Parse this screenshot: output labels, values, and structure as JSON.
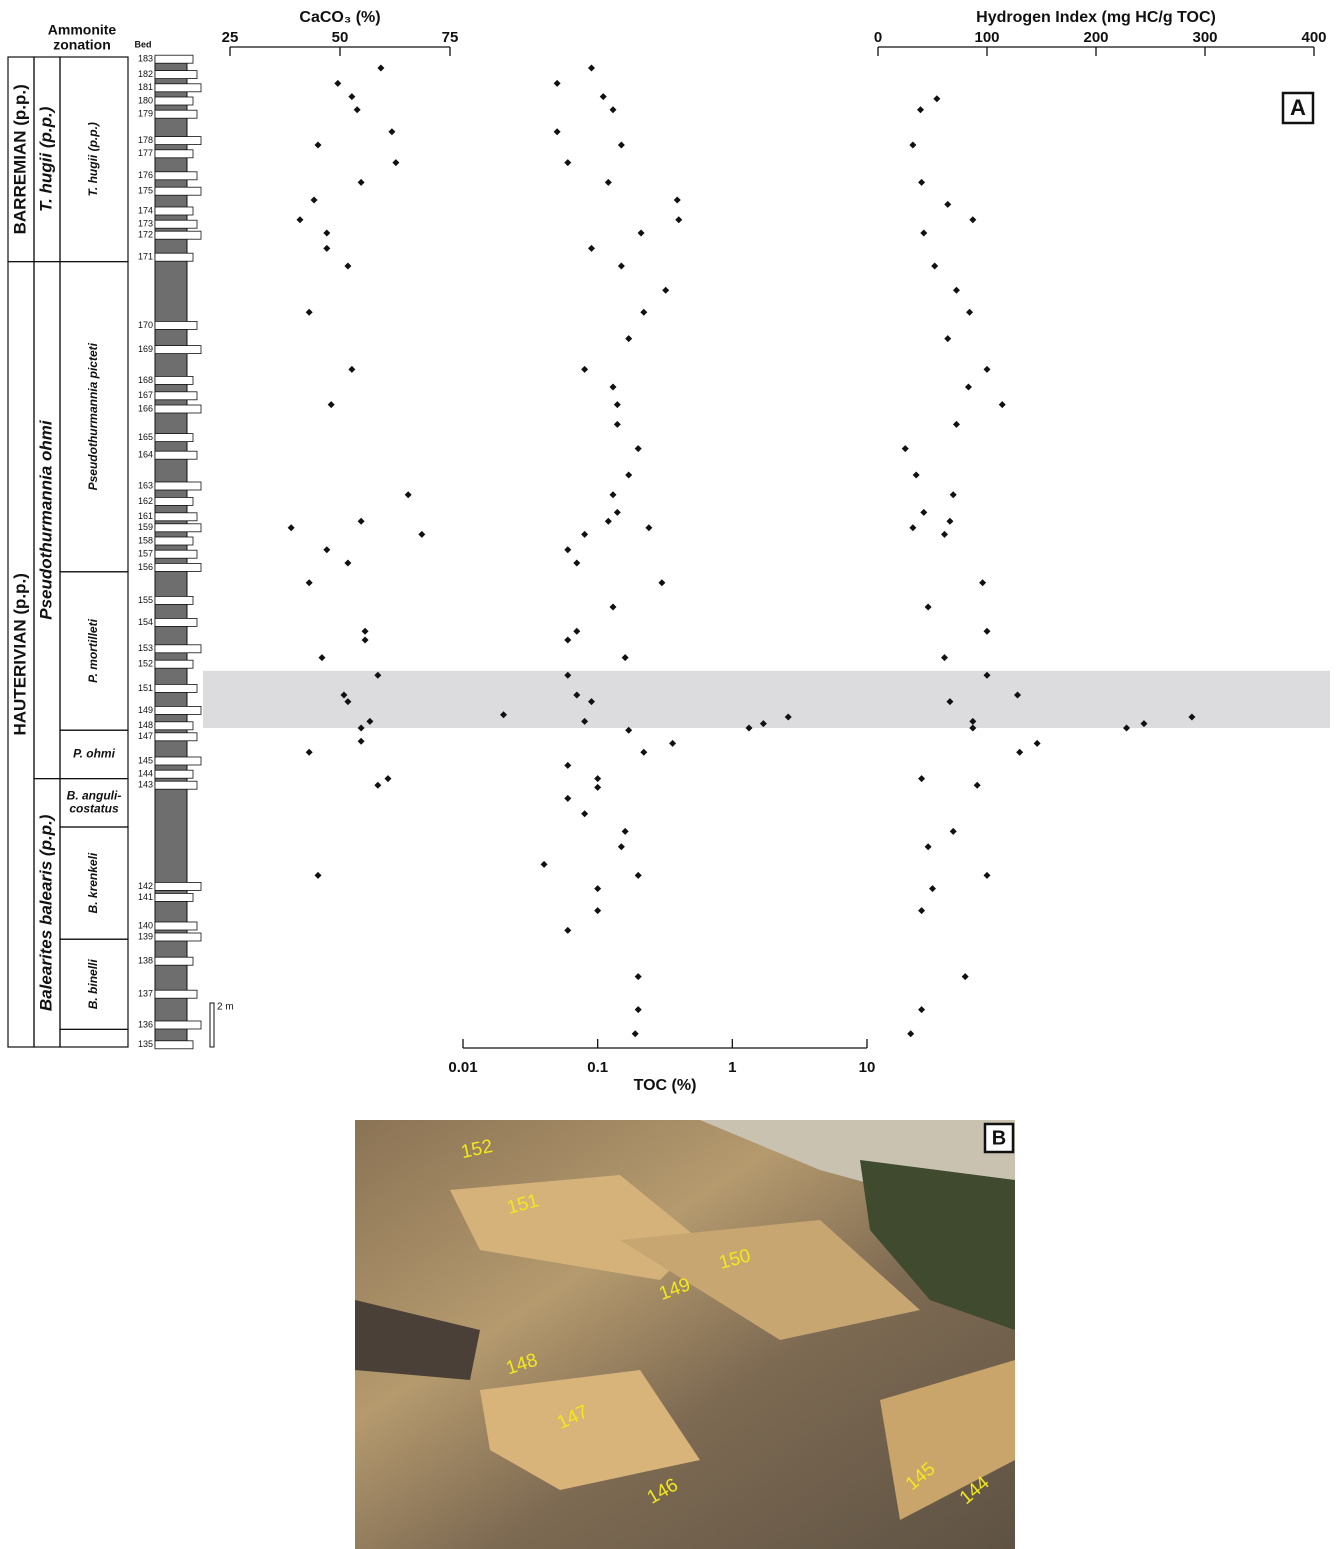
{
  "section": {
    "header_lines": [
      "Ammonite",
      "zonation"
    ],
    "bed_header": "Bed",
    "ylim": [
      0,
      45
    ],
    "stages": [
      {
        "label": "BARREMIAN (p.p.)",
        "from": 35.7,
        "to": 45
      },
      {
        "label": "HAUTERIVIAN (p.p.)",
        "from": 0,
        "to": 35.7
      }
    ],
    "zones": [
      {
        "label": "T. hugii (p.p.)",
        "from": 35.7,
        "to": 45
      },
      {
        "label": "Pseudothurmannia ohmi",
        "from": 12.2,
        "to": 35.7
      },
      {
        "label": "Balearites balearis (p.p.)",
        "from": 0,
        "to": 12.2
      }
    ],
    "subzones": [
      {
        "lines": [
          "T. hugii (p.p.)"
        ],
        "from": 35.7,
        "to": 45,
        "orient": "vertical"
      },
      {
        "lines": [
          "Pseudothurmannia picteti"
        ],
        "from": 21.6,
        "to": 35.7,
        "orient": "vertical"
      },
      {
        "lines": [
          "P. mortilleti"
        ],
        "from": 14.4,
        "to": 21.6,
        "orient": "vertical"
      },
      {
        "lines": [
          "P. ohmi"
        ],
        "from": 12.2,
        "to": 14.4,
        "orient": "horizontal"
      },
      {
        "lines": [
          "B. anguli-",
          "costatus"
        ],
        "from": 10.0,
        "to": 12.2,
        "orient": "horizontal"
      },
      {
        "lines": [
          "B. krenkeli"
        ],
        "from": 4.9,
        "to": 10.0,
        "orient": "vertical"
      },
      {
        "lines": [
          "B. binelli"
        ],
        "from": 0.8,
        "to": 4.9,
        "orient": "vertical"
      }
    ],
    "beds": [
      {
        "label": "183",
        "height": 44.9
      },
      {
        "label": "182",
        "height": 44.2
      },
      {
        "label": "181",
        "height": 43.6
      },
      {
        "label": "180",
        "height": 43.0
      },
      {
        "label": "179",
        "height": 42.4
      },
      {
        "label": "178",
        "height": 41.2
      },
      {
        "label": "177",
        "height": 40.6
      },
      {
        "label": "176",
        "height": 39.6
      },
      {
        "label": "175",
        "height": 38.9
      },
      {
        "label": "174",
        "height": 38.0
      },
      {
        "label": "173",
        "height": 37.4
      },
      {
        "label": "172",
        "height": 36.9
      },
      {
        "label": "171",
        "height": 35.9
      },
      {
        "label": "170",
        "height": 32.8
      },
      {
        "label": "169",
        "height": 31.7
      },
      {
        "label": "168",
        "height": 30.3
      },
      {
        "label": "167",
        "height": 29.6
      },
      {
        "label": "166",
        "height": 29.0
      },
      {
        "label": "165",
        "height": 27.7
      },
      {
        "label": "164",
        "height": 26.9
      },
      {
        "label": "163",
        "height": 25.5
      },
      {
        "label": "162",
        "height": 24.8
      },
      {
        "label": "161",
        "height": 24.1
      },
      {
        "label": "159",
        "height": 23.6
      },
      {
        "label": "158",
        "height": 23.0
      },
      {
        "label": "157",
        "height": 22.4
      },
      {
        "label": "156",
        "height": 21.8
      },
      {
        "label": "155",
        "height": 20.3
      },
      {
        "label": "154",
        "height": 19.3
      },
      {
        "label": "153",
        "height": 18.1
      },
      {
        "label": "152",
        "height": 17.4
      },
      {
        "label": "151",
        "height": 16.3
      },
      {
        "label": "149",
        "height": 15.3
      },
      {
        "label": "148",
        "height": 14.6
      },
      {
        "label": "147",
        "height": 14.1
      },
      {
        "label": "145",
        "height": 13.0
      },
      {
        "label": "144",
        "height": 12.4
      },
      {
        "label": "143",
        "height": 11.9
      },
      {
        "label": "142",
        "height": 7.3
      },
      {
        "label": "141",
        "height": 6.8
      },
      {
        "label": "140",
        "height": 5.5
      },
      {
        "label": "139",
        "height": 5.0
      },
      {
        "label": "138",
        "height": 3.9
      },
      {
        "label": "137",
        "height": 2.4
      },
      {
        "label": "136",
        "height": 1.0
      },
      {
        "label": "135",
        "height": 0.1
      }
    ],
    "scale": {
      "label": "2 m",
      "length": 2
    },
    "highlight": [
      14.5,
      17.1
    ],
    "panel_label": "A"
  },
  "chart_data": [
    {
      "type": "scatter",
      "title": "CaCO₃ (%)",
      "axis_position": "top",
      "log": false,
      "color": "#111111",
      "xlim": [
        25,
        75
      ],
      "xticks": [
        25,
        50,
        75
      ],
      "values": [
        59.3,
        49.5,
        52.7,
        53.9,
        61.8,
        45.0,
        62.7,
        54.8,
        44.1,
        40.9,
        47.0,
        47.0,
        51.8,
        43.0,
        52.7,
        48.0,
        65.5,
        54.8,
        38.9,
        68.6,
        47.0,
        51.8,
        43.0,
        55.7,
        55.7,
        45.9,
        58.6,
        50.9,
        51.8,
        56.8,
        54.8,
        54.8,
        43.0,
        60.9,
        58.6,
        45.0
      ],
      "heights": [
        44.5,
        43.8,
        43.2,
        42.6,
        41.6,
        41.0,
        40.2,
        39.3,
        38.5,
        37.6,
        37.0,
        36.3,
        35.5,
        33.4,
        30.8,
        29.2,
        25.1,
        23.9,
        23.6,
        23.3,
        22.6,
        22.0,
        21.1,
        18.9,
        18.5,
        17.7,
        16.9,
        16.0,
        15.7,
        14.8,
        14.5,
        13.9,
        13.4,
        12.2,
        11.9,
        7.8
      ]
    },
    {
      "type": "scatter",
      "title": "TOC (%)",
      "axis_position": "bottom",
      "log": true,
      "color": "#111111",
      "xlim": [
        0.01,
        10
      ],
      "xticks": [
        0.01,
        0.1,
        1,
        10
      ],
      "values": [
        0.09,
        0.05,
        0.11,
        0.13,
        0.05,
        0.15,
        0.06,
        0.12,
        0.39,
        0.4,
        0.21,
        0.09,
        0.15,
        0.32,
        0.22,
        0.17,
        0.08,
        0.13,
        0.14,
        0.14,
        0.2,
        0.17,
        0.13,
        0.14,
        0.12,
        0.24,
        0.08,
        0.06,
        0.07,
        0.3,
        0.13,
        0.07,
        0.06,
        0.16,
        0.06,
        0.07,
        0.09,
        0.02,
        0.08,
        0.17,
        2.6,
        1.7,
        1.33,
        0.36,
        0.22,
        0.06,
        0.1,
        0.1,
        0.06,
        0.08,
        0.16,
        0.15,
        0.04,
        0.2,
        0.1,
        0.1,
        0.06,
        0.2,
        0.2,
        0.19
      ],
      "heights": [
        44.5,
        43.8,
        43.2,
        42.6,
        41.6,
        41.0,
        40.2,
        39.3,
        38.5,
        37.6,
        37.0,
        36.3,
        35.5,
        34.4,
        33.4,
        32.2,
        30.8,
        30.0,
        29.2,
        28.3,
        27.2,
        26.0,
        25.1,
        24.3,
        23.9,
        23.6,
        23.3,
        22.6,
        22.0,
        21.1,
        20.0,
        18.9,
        18.5,
        17.7,
        16.9,
        16.0,
        15.7,
        15.1,
        14.8,
        14.4,
        15.0,
        14.7,
        14.5,
        13.8,
        13.4,
        12.8,
        12.2,
        11.8,
        11.3,
        10.6,
        9.8,
        9.1,
        8.3,
        7.8,
        7.2,
        6.2,
        5.3,
        3.2,
        1.7,
        0.6
      ]
    },
    {
      "type": "scatter",
      "title": "Hydrogen Index (mg HC/g TOC)",
      "axis_position": "top",
      "log": false,
      "color": "#111111",
      "xlim": [
        0,
        400
      ],
      "xticks": [
        0,
        100,
        200,
        300,
        400
      ],
      "values": [
        54,
        39,
        32,
        40,
        64,
        87,
        42,
        52,
        72,
        84,
        64,
        100,
        83,
        114,
        72,
        25,
        35,
        69,
        42,
        66,
        32,
        61,
        96,
        46,
        100,
        61,
        100,
        128,
        66,
        288,
        244,
        87,
        87,
        228,
        146,
        130,
        40,
        91,
        69,
        46,
        100,
        50,
        40,
        80,
        40,
        30
      ],
      "heights": [
        43.1,
        42.6,
        41.0,
        39.3,
        38.3,
        37.6,
        37.0,
        35.5,
        34.4,
        33.4,
        32.2,
        30.8,
        30.0,
        29.2,
        28.3,
        27.2,
        26.0,
        25.1,
        24.3,
        23.9,
        23.6,
        23.3,
        21.1,
        20.0,
        18.9,
        17.7,
        16.9,
        16.0,
        15.7,
        15.0,
        14.7,
        14.8,
        14.5,
        14.5,
        13.8,
        13.4,
        12.2,
        11.9,
        9.8,
        9.1,
        7.8,
        7.2,
        6.2,
        3.2,
        1.7,
        0.6
      ]
    }
  ],
  "photo": {
    "panel_label": "B",
    "bed_labels": [
      "152",
      "151",
      "150",
      "149",
      "148",
      "147",
      "146",
      "145",
      "144"
    ]
  }
}
